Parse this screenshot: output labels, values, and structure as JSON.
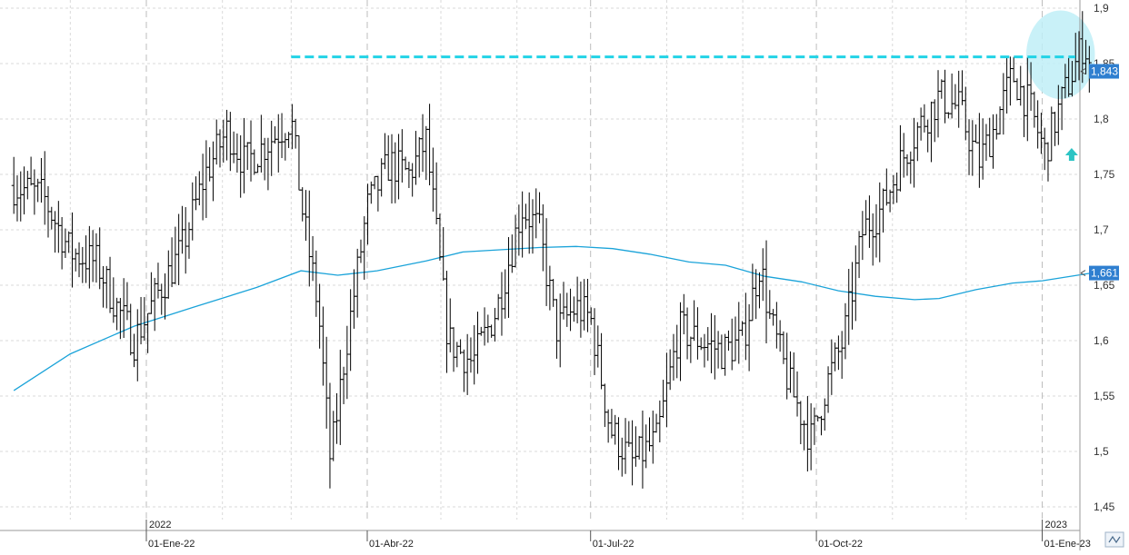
{
  "chart_data": {
    "type": "ohlc",
    "colors": {
      "price_bars": "#000000",
      "moving_average": "#1aa3d9",
      "resistance_line": "#22d3e6",
      "highlight_ellipse": "#bfeff7",
      "up_arrow": "#2cc4c4",
      "price_tag": "#2f7fd0",
      "grid": "#d9d9d9"
    },
    "y_axis": {
      "range": [
        1.43,
        1.905
      ],
      "ticks": [
        "1,45",
        "1,5",
        "1,55",
        "1,6",
        "1,65",
        "1,7",
        "1,75",
        "1,8",
        "1,85",
        "1,9"
      ],
      "tick_values": [
        1.45,
        1.5,
        1.55,
        1.6,
        1.65,
        1.7,
        1.75,
        1.8,
        1.85,
        1.9
      ]
    },
    "x_axis": {
      "year_labels": [
        {
          "label": "2022",
          "date": "2022-01-01"
        },
        {
          "label": "2023",
          "date": "2023-01-01"
        }
      ],
      "date_labels": [
        {
          "label": "01-Ene-22",
          "date": "2022-01-01"
        },
        {
          "label": "01-Abr-22",
          "date": "2022-04-01"
        },
        {
          "label": "01-Jul-22",
          "date": "2022-07-01"
        },
        {
          "label": "01-Oct-22",
          "date": "2022-10-01"
        },
        {
          "label": "01-Ene-23",
          "date": "2023-01-01"
        }
      ]
    },
    "price_path": [
      [
        "2021-11-08",
        1.74
      ],
      [
        "2021-11-20",
        1.73
      ],
      [
        "2021-12-01",
        1.68
      ],
      [
        "2021-12-12",
        1.67
      ],
      [
        "2021-12-20",
        1.63
      ],
      [
        "2021-12-27",
        1.6
      ],
      [
        "2022-01-05",
        1.64
      ],
      [
        "2022-01-15",
        1.68
      ],
      [
        "2022-01-25",
        1.75
      ],
      [
        "2022-02-03",
        1.79
      ],
      [
        "2022-02-10",
        1.76
      ],
      [
        "2022-02-20",
        1.78
      ],
      [
        "2022-03-01",
        1.8
      ],
      [
        "2022-03-06",
        1.71
      ],
      [
        "2022-03-12",
        1.63
      ],
      [
        "2022-03-17",
        1.49
      ],
      [
        "2022-03-23",
        1.59
      ],
      [
        "2022-04-01",
        1.72
      ],
      [
        "2022-04-10",
        1.76
      ],
      [
        "2022-04-18",
        1.75
      ],
      [
        "2022-04-25",
        1.78
      ],
      [
        "2022-05-04",
        1.6
      ],
      [
        "2022-05-14",
        1.58
      ],
      [
        "2022-05-24",
        1.63
      ],
      [
        "2022-06-03",
        1.72
      ],
      [
        "2022-06-10",
        1.7
      ],
      [
        "2022-06-17",
        1.61
      ],
      [
        "2022-06-25",
        1.63
      ],
      [
        "2022-07-01",
        1.62
      ],
      [
        "2022-07-09",
        1.52
      ],
      [
        "2022-07-18",
        1.49
      ],
      [
        "2022-07-28",
        1.51
      ],
      [
        "2022-08-06",
        1.61
      ],
      [
        "2022-08-15",
        1.6
      ],
      [
        "2022-08-24",
        1.59
      ],
      [
        "2022-09-01",
        1.6
      ],
      [
        "2022-09-08",
        1.67
      ],
      [
        "2022-09-12",
        1.62
      ],
      [
        "2022-09-20",
        1.56
      ],
      [
        "2022-09-29",
        1.51
      ],
      [
        "2022-10-05",
        1.56
      ],
      [
        "2022-10-12",
        1.6
      ],
      [
        "2022-10-20",
        1.7
      ],
      [
        "2022-10-28",
        1.72
      ],
      [
        "2022-11-04",
        1.76
      ],
      [
        "2022-11-11",
        1.79
      ],
      [
        "2022-11-20",
        1.82
      ],
      [
        "2022-11-28",
        1.81
      ],
      [
        "2022-12-06",
        1.76
      ],
      [
        "2022-12-12",
        1.79
      ],
      [
        "2022-12-20",
        1.84
      ],
      [
        "2022-12-27",
        1.81
      ],
      [
        "2023-01-02",
        1.77
      ],
      [
        "2023-01-08",
        1.81
      ],
      [
        "2023-01-13",
        1.84
      ],
      [
        "2023-01-18",
        1.87
      ],
      [
        "2023-01-21",
        1.843
      ]
    ],
    "moving_average": [
      [
        "2021-11-08",
        1.555
      ],
      [
        "2021-12-01",
        1.588
      ],
      [
        "2021-12-27",
        1.613
      ],
      [
        "2022-01-20",
        1.63
      ],
      [
        "2022-02-15",
        1.648
      ],
      [
        "2022-03-05",
        1.663
      ],
      [
        "2022-03-20",
        1.659
      ],
      [
        "2022-04-05",
        1.663
      ],
      [
        "2022-04-25",
        1.672
      ],
      [
        "2022-05-10",
        1.68
      ],
      [
        "2022-05-25",
        1.682
      ],
      [
        "2022-06-10",
        1.684
      ],
      [
        "2022-06-25",
        1.685
      ],
      [
        "2022-07-10",
        1.683
      ],
      [
        "2022-07-25",
        1.678
      ],
      [
        "2022-08-10",
        1.671
      ],
      [
        "2022-08-25",
        1.668
      ],
      [
        "2022-09-10",
        1.658
      ],
      [
        "2022-09-25",
        1.653
      ],
      [
        "2022-10-10",
        1.645
      ],
      [
        "2022-10-25",
        1.64
      ],
      [
        "2022-11-10",
        1.637
      ],
      [
        "2022-11-20",
        1.638
      ],
      [
        "2022-12-05",
        1.646
      ],
      [
        "2022-12-20",
        1.652
      ],
      [
        "2023-01-01",
        1.654
      ],
      [
        "2023-01-21",
        1.661
      ]
    ],
    "resistance_level": 1.856,
    "resistance_start": "2022-03-01",
    "highlight_region": {
      "from": "2022-12-27",
      "to": "2023-01-21",
      "low": 1.818,
      "high": 1.898
    },
    "signal_arrow": {
      "date": "2023-01-13",
      "value": 1.768,
      "direction": "up"
    },
    "last_price": {
      "value": 1.843,
      "label": "1,843"
    },
    "ma_last": {
      "value": 1.661,
      "label": "1,661"
    },
    "grid": true
  },
  "ui": {
    "corner_icon": "collapse-axis-icon"
  }
}
